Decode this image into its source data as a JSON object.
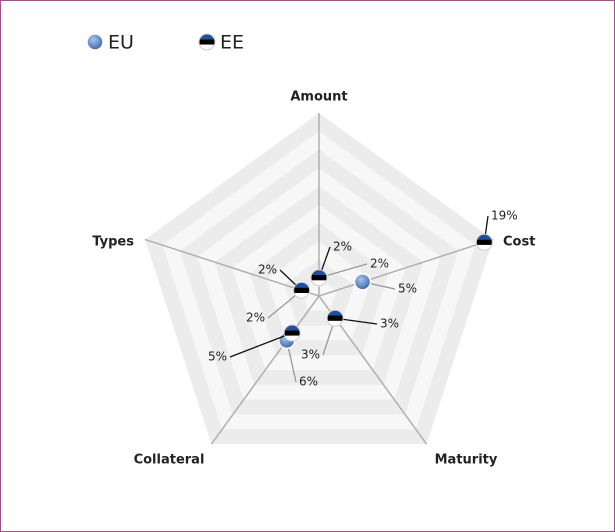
{
  "chart_data": {
    "type": "radar",
    "categories": [
      "Amount",
      "Cost",
      "Maturity",
      "Collateral",
      "Types"
    ],
    "series": [
      {
        "name": "EU",
        "color": "#4f7fc4",
        "values": [
          2,
          5,
          3,
          6,
          2
        ],
        "value_labels": [
          "2%",
          "5%",
          "3%",
          "6%",
          "2%"
        ]
      },
      {
        "name": "EE",
        "color": "#1f4f9e",
        "values": [
          2,
          19,
          3,
          5,
          2
        ],
        "value_labels": [
          "2%",
          "19%",
          "3%",
          "5%",
          "2%"
        ]
      }
    ],
    "ylim": [
      0,
      20
    ],
    "yticks": [
      2,
      4,
      6,
      8,
      10,
      12,
      14,
      16,
      18,
      20
    ],
    "grid": true,
    "legend": "top-left"
  }
}
